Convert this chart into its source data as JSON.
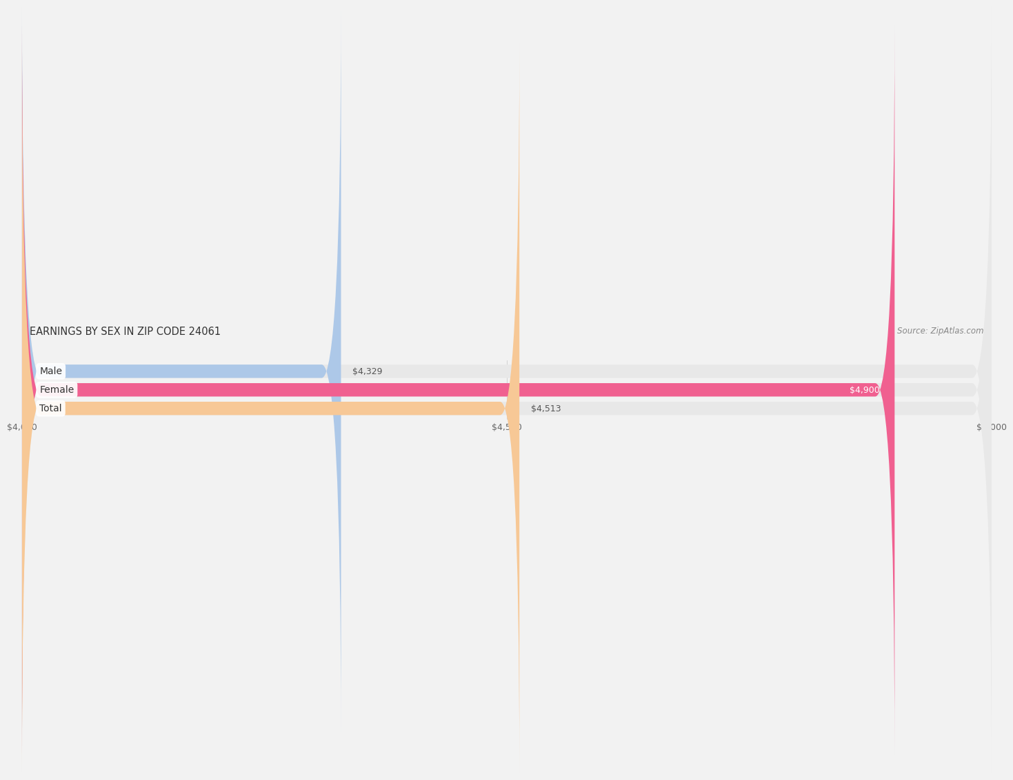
{
  "title": "EARNINGS BY SEX IN ZIP CODE 24061",
  "source": "Source: ZipAtlas.com",
  "categories": [
    "Male",
    "Female",
    "Total"
  ],
  "values": [
    4329,
    4900,
    4513
  ],
  "xmin": 4000,
  "xmax": 5000,
  "xticks": [
    4000,
    4500,
    5000
  ],
  "xtick_labels": [
    "$4,000",
    "$4,500",
    "$5,000"
  ],
  "bar_colors": [
    "#adc8e8",
    "#f06090",
    "#f7c896"
  ],
  "bar_bg_color": "#e8e8e8",
  "bar_label_colors": [
    "#555555",
    "#ffffff",
    "#555555"
  ],
  "label_values": [
    "$4,329",
    "$4,900",
    "$4,513"
  ],
  "background_color": "#f2f2f2",
  "title_fontsize": 10.5,
  "source_fontsize": 8.5,
  "tick_fontsize": 9,
  "label_fontsize": 9,
  "category_fontsize": 10
}
